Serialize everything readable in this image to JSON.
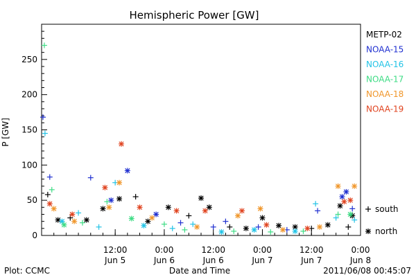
{
  "chart_data": {
    "type": "scatter",
    "title": "Hemispheric Power [GW]",
    "ylabel": "P [GW]",
    "xlabel": "Date and Time",
    "ylim": [
      0,
      300
    ],
    "xlim": [
      "2011-06-04T18:00",
      "2011-06-08T00:00"
    ],
    "y_ticks": [
      0,
      50,
      100,
      150,
      200,
      250
    ],
    "x_ticks": [
      {
        "at": "2011-06-05T12:00",
        "time": "12:00",
        "date": "Jun 5"
      },
      {
        "at": "2011-06-06T00:00",
        "time": "0:00",
        "date": "Jun 6"
      },
      {
        "at": "2011-06-06T12:00",
        "time": "12:00",
        "date": "Jun 6"
      },
      {
        "at": "2011-06-07T00:00",
        "time": "0:00",
        "date": "Jun 7"
      },
      {
        "at": "2011-06-07T12:00",
        "time": "12:00",
        "date": "Jun 7"
      },
      {
        "at": "2011-06-08T00:00",
        "time": "0:00",
        "date": "Jun 8"
      }
    ],
    "legend": {
      "placement": "right",
      "satellites": [
        {
          "name": "METP-02",
          "color": "#000000"
        },
        {
          "name": "NOAA-15",
          "color": "#1f2fd0"
        },
        {
          "name": "NOAA-16",
          "color": "#22c3e6"
        },
        {
          "name": "NOAA-17",
          "color": "#3ddc84"
        },
        {
          "name": "NOAA-18",
          "color": "#f0962a"
        },
        {
          "name": "NOAA-19",
          "color": "#e0431f"
        }
      ],
      "markers": [
        {
          "symbol": "+",
          "label": "south"
        },
        {
          "symbol": "*",
          "label": "north"
        }
      ]
    },
    "series": [
      {
        "name": "METP-02",
        "points": [
          [
            "2011-06-04T19:30",
            58,
            "+"
          ],
          [
            "2011-06-04T22:00",
            22,
            "*"
          ],
          [
            "2011-06-05T01:00",
            25,
            "+"
          ],
          [
            "2011-06-05T05:00",
            22,
            "*"
          ],
          [
            "2011-06-05T09:00",
            38,
            "*"
          ],
          [
            "2011-06-05T13:00",
            52,
            "*"
          ],
          [
            "2011-06-05T17:00",
            55,
            "+"
          ],
          [
            "2011-06-05T20:00",
            20,
            "*"
          ],
          [
            "2011-06-06T01:00",
            40,
            "*"
          ],
          [
            "2011-06-06T06:00",
            28,
            "+"
          ],
          [
            "2011-06-06T09:00",
            53,
            "*"
          ],
          [
            "2011-06-06T11:00",
            40,
            "*"
          ],
          [
            "2011-06-06T16:00",
            12,
            "+"
          ],
          [
            "2011-06-06T20:00",
            10,
            "*"
          ],
          [
            "2011-06-07T00:00",
            25,
            "*"
          ],
          [
            "2011-06-07T04:00",
            14,
            "*"
          ],
          [
            "2011-06-07T08:00",
            12,
            "*"
          ],
          [
            "2011-06-07T12:00",
            10,
            "+"
          ],
          [
            "2011-06-07T16:00",
            15,
            "*"
          ],
          [
            "2011-06-07T19:00",
            42,
            "*"
          ],
          [
            "2011-06-07T21:00",
            12,
            "+"
          ],
          [
            "2011-06-07T22:00",
            28,
            "*"
          ]
        ]
      },
      {
        "name": "NOAA-15",
        "points": [
          [
            "2011-06-04T18:20",
            168,
            "+"
          ],
          [
            "2011-06-04T20:00",
            83,
            "+"
          ],
          [
            "2011-06-05T06:00",
            82,
            "+"
          ],
          [
            "2011-06-05T11:00",
            50,
            "*"
          ],
          [
            "2011-06-05T15:00",
            92,
            "*"
          ],
          [
            "2011-06-05T22:00",
            30,
            "*"
          ],
          [
            "2011-06-06T04:00",
            18,
            "+"
          ],
          [
            "2011-06-06T12:00",
            12,
            "+"
          ],
          [
            "2011-06-06T15:00",
            20,
            "+"
          ],
          [
            "2011-06-06T23:00",
            12,
            "+"
          ],
          [
            "2011-06-07T06:00",
            8,
            "+"
          ],
          [
            "2011-06-07T13:30",
            35,
            "+"
          ],
          [
            "2011-06-07T19:30",
            55,
            "*"
          ],
          [
            "2011-06-07T20:30",
            62,
            "*"
          ],
          [
            "2011-06-07T22:00",
            38,
            "+"
          ]
        ]
      },
      {
        "name": "NOAA-16",
        "points": [
          [
            "2011-06-04T18:50",
            145,
            "+"
          ],
          [
            "2011-06-04T23:00",
            20,
            "*"
          ],
          [
            "2011-06-05T03:00",
            32,
            "+"
          ],
          [
            "2011-06-05T08:00",
            12,
            "+"
          ],
          [
            "2011-06-05T12:00",
            75,
            "+"
          ],
          [
            "2011-06-05T19:00",
            14,
            "*"
          ],
          [
            "2011-06-06T02:00",
            10,
            "+"
          ],
          [
            "2011-06-06T07:00",
            16,
            "+"
          ],
          [
            "2011-06-06T14:00",
            5,
            "*"
          ],
          [
            "2011-06-06T22:00",
            8,
            "*"
          ],
          [
            "2011-06-07T08:00",
            6,
            "*"
          ],
          [
            "2011-06-07T13:00",
            45,
            "+"
          ],
          [
            "2011-06-07T18:00",
            25,
            "+"
          ],
          [
            "2011-06-07T22:30",
            22,
            "+"
          ]
        ]
      },
      {
        "name": "NOAA-17",
        "points": [
          [
            "2011-06-04T18:40",
            270,
            "+"
          ],
          [
            "2011-06-04T20:30",
            65,
            "+"
          ],
          [
            "2011-06-04T23:30",
            15,
            "*"
          ],
          [
            "2011-06-05T04:00",
            18,
            "+"
          ],
          [
            "2011-06-05T10:00",
            48,
            "+"
          ],
          [
            "2011-06-05T16:00",
            24,
            "*"
          ],
          [
            "2011-06-06T00:00",
            16,
            "+"
          ],
          [
            "2011-06-06T05:00",
            8,
            "+"
          ],
          [
            "2011-06-06T17:00",
            6,
            "+"
          ],
          [
            "2011-06-07T02:00",
            5,
            "+"
          ],
          [
            "2011-06-07T10:00",
            6,
            "+"
          ],
          [
            "2011-06-07T18:30",
            30,
            "+"
          ],
          [
            "2011-06-07T21:30",
            30,
            "*"
          ]
        ]
      },
      {
        "name": "NOAA-18",
        "points": [
          [
            "2011-06-04T21:00",
            38,
            "*"
          ],
          [
            "2011-06-05T02:00",
            20,
            "*"
          ],
          [
            "2011-06-05T10:30",
            40,
            "*"
          ],
          [
            "2011-06-05T13:00",
            75,
            "*"
          ],
          [
            "2011-06-05T21:00",
            25,
            "*"
          ],
          [
            "2011-06-06T08:00",
            12,
            "*"
          ],
          [
            "2011-06-06T18:00",
            28,
            "*"
          ],
          [
            "2011-06-06T23:30",
            38,
            "*"
          ],
          [
            "2011-06-07T05:00",
            8,
            "*"
          ],
          [
            "2011-06-07T14:00",
            12,
            "*"
          ],
          [
            "2011-06-07T18:30",
            70,
            "*"
          ],
          [
            "2011-06-07T22:30",
            70,
            "*"
          ]
        ]
      },
      {
        "name": "NOAA-19",
        "points": [
          [
            "2011-06-04T20:00",
            45,
            "*"
          ],
          [
            "2011-06-05T01:30",
            30,
            "*"
          ],
          [
            "2011-06-05T09:30",
            68,
            "*"
          ],
          [
            "2011-06-05T13:30",
            130,
            "*"
          ],
          [
            "2011-06-05T18:00",
            40,
            "*"
          ],
          [
            "2011-06-06T03:00",
            35,
            "*"
          ],
          [
            "2011-06-06T10:00",
            35,
            "*"
          ],
          [
            "2011-06-06T19:00",
            35,
            "*"
          ],
          [
            "2011-06-07T01:00",
            15,
            "*"
          ],
          [
            "2011-06-07T11:00",
            10,
            "*"
          ],
          [
            "2011-06-07T20:00",
            48,
            "*"
          ],
          [
            "2011-06-07T21:30",
            50,
            "*"
          ]
        ]
      }
    ]
  },
  "footer": {
    "plot_credit": "Plot: CCMC",
    "axis_caption": "Date and Time",
    "timestamp": "2011/06/08 00:45:07"
  }
}
